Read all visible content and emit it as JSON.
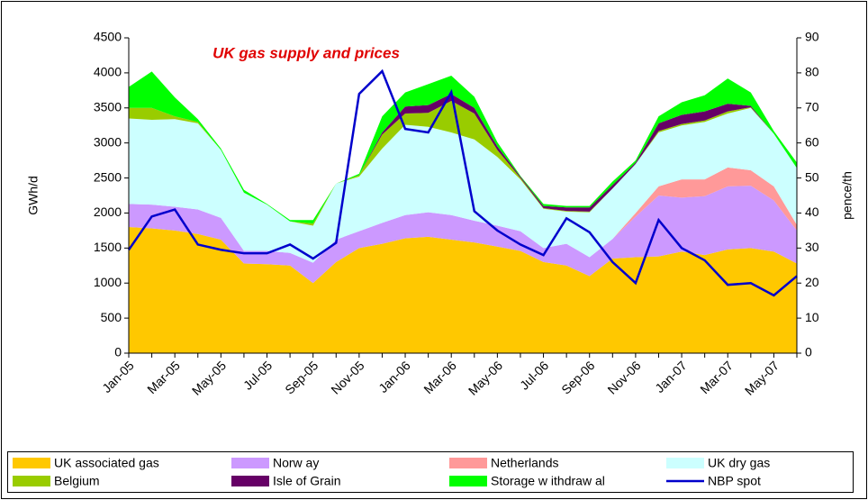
{
  "chart_data": {
    "type": "stacked-area-line",
    "title": "UK gas supply and prices",
    "y_label": "GWh/d",
    "y2_label": "pence/th",
    "categories": [
      "Jan-05",
      null,
      "Mar-05",
      null,
      "May-05",
      null,
      "Jul-05",
      null,
      "Sep-05",
      null,
      "Nov-05",
      null,
      "Jan-06",
      null,
      "Mar-06",
      null,
      "May-06",
      null,
      "Jul-06",
      null,
      "Sep-06",
      null,
      "Nov-06",
      null,
      "Jan-07",
      null,
      "Mar-07",
      null,
      "May-07",
      null
    ],
    "ylim": [
      0,
      4500
    ],
    "yticks": [
      0,
      500,
      1000,
      1500,
      2000,
      2500,
      3000,
      3500,
      4000,
      4500
    ],
    "y2lim": [
      0,
      90
    ],
    "y2ticks": [
      0,
      10,
      20,
      30,
      40,
      50,
      60,
      70,
      80,
      90
    ],
    "series": [
      {
        "name": "UK associated gas",
        "color": "#ffc800",
        "values": [
          1800,
          1780,
          1750,
          1700,
          1620,
          1280,
          1270,
          1250,
          1000,
          1300,
          1500,
          1560,
          1640,
          1660,
          1620,
          1580,
          1520,
          1460,
          1300,
          1250,
          1100,
          1350,
          1370,
          1380,
          1450,
          1400,
          1480,
          1500,
          1450,
          1280
        ]
      },
      {
        "name": "Norw ay",
        "color": "#cc99ff",
        "values": [
          330,
          340,
          340,
          350,
          310,
          180,
          190,
          180,
          290,
          320,
          240,
          300,
          330,
          350,
          350,
          310,
          300,
          280,
          200,
          310,
          270,
          280,
          580,
          870,
          770,
          840,
          900,
          890,
          730,
          470
        ]
      },
      {
        "name": "Netherlands",
        "color": "#ff9999",
        "values": [
          0,
          0,
          0,
          0,
          0,
          0,
          0,
          0,
          0,
          0,
          0,
          0,
          0,
          0,
          0,
          0,
          0,
          0,
          0,
          0,
          0,
          0,
          50,
          130,
          260,
          240,
          270,
          220,
          200,
          80
        ]
      },
      {
        "name": "UK dry gas",
        "color": "#ccffff",
        "values": [
          1220,
          1210,
          1250,
          1230,
          970,
          830,
          660,
          450,
          530,
          800,
          780,
          1060,
          1290,
          1220,
          1180,
          1160,
          980,
          740,
          560,
          460,
          640,
          720,
          700,
          770,
          770,
          820,
          770,
          890,
          750,
          810
        ]
      },
      {
        "name": "Belgium",
        "color": "#99cc00",
        "values": [
          150,
          170,
          40,
          20,
          0,
          0,
          0,
          0,
          30,
          0,
          20,
          200,
          160,
          200,
          450,
          370,
          100,
          20,
          10,
          10,
          10,
          0,
          0,
          20,
          20,
          20,
          30,
          10,
          0,
          0
        ]
      },
      {
        "name": "Isle of Grain",
        "color": "#660066",
        "values": [
          0,
          0,
          0,
          0,
          0,
          0,
          0,
          0,
          0,
          0,
          0,
          30,
          100,
          110,
          100,
          80,
          50,
          20,
          30,
          50,
          60,
          50,
          20,
          110,
          130,
          130,
          110,
          20,
          0,
          0
        ]
      },
      {
        "name": "Storage w ithdraw al",
        "color": "#00ff00",
        "values": [
          300,
          520,
          270,
          40,
          20,
          40,
          10,
          20,
          50,
          0,
          20,
          230,
          200,
          300,
          260,
          160,
          60,
          10,
          30,
          20,
          20,
          50,
          30,
          100,
          180,
          230,
          360,
          190,
          40,
          80
        ]
      },
      {
        "name": "NBP spot",
        "color": "#0000cc",
        "axis": "y2",
        "values": [
          29.5,
          39,
          41,
          31,
          29.5,
          28.5,
          28.5,
          31,
          27,
          31.5,
          74,
          80.5,
          64,
          63,
          74.5,
          40.5,
          35,
          31,
          28,
          38.5,
          34.5,
          26,
          20,
          38,
          30,
          26.5,
          19.5,
          20,
          16.5,
          22
        ]
      }
    ]
  }
}
